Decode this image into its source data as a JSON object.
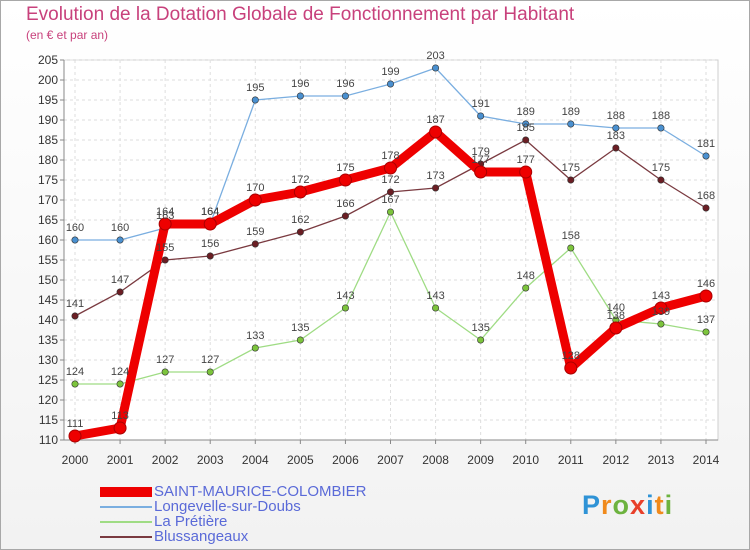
{
  "title": "Evolution de la Dotation Globale de Fonctionnement par Habitant",
  "subtitle": "(en € et par an)",
  "logo": {
    "letters": [
      "P",
      "r",
      "o",
      "x",
      "i",
      "t",
      "i"
    ],
    "colors": [
      "#2f93d6",
      "#f08a1c",
      "#6db33f",
      "#e8402a",
      "#2f93d6",
      "#f08a1c",
      "#6db33f"
    ]
  },
  "chart_data": {
    "type": "line",
    "title": "Evolution de la Dotation Globale de Fonctionnement par Habitant",
    "subtitle": "(en € et par an)",
    "xlabel": "",
    "ylabel": "",
    "x": [
      2000,
      2001,
      2002,
      2003,
      2004,
      2005,
      2006,
      2007,
      2008,
      2009,
      2010,
      2011,
      2012,
      2013,
      2014
    ],
    "ylim": [
      110,
      205
    ],
    "yticks": [
      110,
      115,
      120,
      125,
      130,
      135,
      140,
      145,
      150,
      155,
      160,
      165,
      170,
      175,
      180,
      185,
      190,
      195,
      200,
      205
    ],
    "grid": true,
    "legend_position": "bottom-left",
    "series": [
      {
        "name": "Longevelle-sur-Doubs",
        "color": "#4a90d0",
        "line": "#7aaee0",
        "values": [
          160,
          160,
          163,
          164,
          195,
          196,
          196,
          199,
          203,
          191,
          189,
          189,
          188,
          188,
          181
        ]
      },
      {
        "name": "La Prétière",
        "color": "#7cc43c",
        "line": "#9fdc84",
        "values": [
          124,
          124,
          127,
          127,
          133,
          135,
          143,
          167,
          143,
          135,
          148,
          158,
          140,
          139,
          137
        ]
      },
      {
        "name": "Blussangeaux",
        "color": "#6b1e24",
        "line": "#7a3a40",
        "values": [
          141,
          147,
          155,
          156,
          159,
          162,
          166,
          172,
          173,
          179,
          185,
          175,
          183,
          175,
          168
        ]
      },
      {
        "name": "SAINT-MAURICE-COLOMBIER",
        "color": "#ee0000",
        "line": "#ee0000",
        "highlight": true,
        "values": [
          111,
          113,
          164,
          164,
          170,
          172,
          175,
          178,
          187,
          177,
          177,
          128,
          138,
          143,
          146
        ]
      }
    ],
    "legend": [
      "SAINT-MAURICE-COLOMBIER",
      "Longevelle-sur-Doubs",
      "La Prétière",
      "Blussangeaux"
    ]
  }
}
